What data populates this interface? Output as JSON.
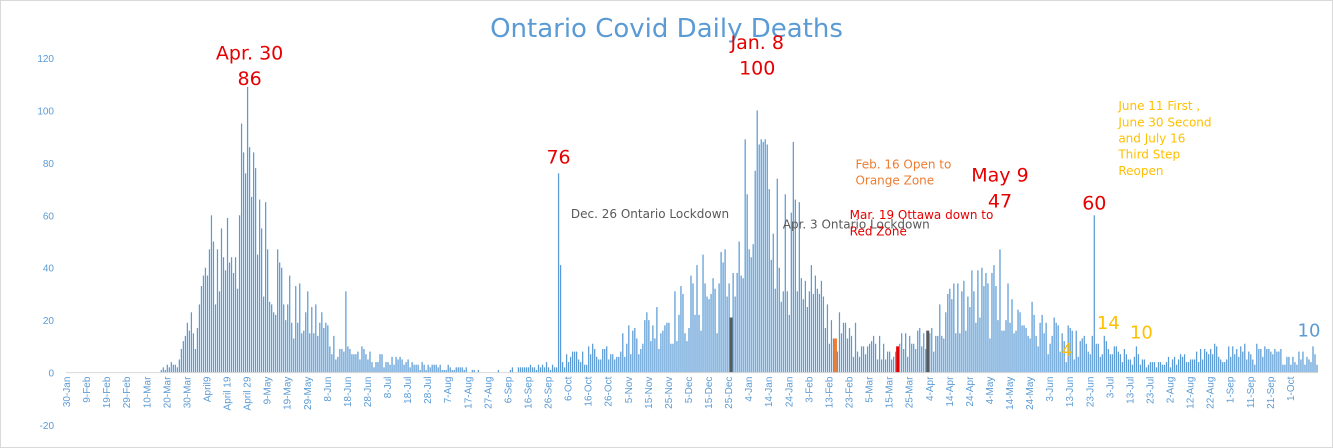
{
  "colors": {
    "bar": "#5b9bd5",
    "title": "#5b9bd5",
    "red": "#e60000",
    "orange": "#ed7d31",
    "gray": "#595959",
    "gold": "#ffc000",
    "blue": "#5b9bd5",
    "axis": "#d9d9d9"
  },
  "chart_data": {
    "type": "bar",
    "title": "Ontario Covid Daily Deaths",
    "xlabel": "",
    "ylabel": "",
    "ylim": [
      -20,
      120
    ],
    "yticks": [
      -20,
      0,
      20,
      40,
      60,
      80,
      100,
      120
    ],
    "grid": false,
    "legend": "none",
    "x_start": "2020-01-30",
    "num_days": 624,
    "xtick_labels": [
      "30-Jan",
      "9-Feb",
      "19-Feb",
      "29-Feb",
      "10-Mar",
      "20-Mar",
      "30-Mar",
      "April9",
      "April 19",
      "April 29",
      "9-May",
      "19-May",
      "29-May",
      "8-Jun",
      "18-Jun",
      "28-Jun",
      "8-Jul",
      "18-Jul",
      "28-Jul",
      "7-Aug",
      "17-Aug",
      "27-Aug",
      "6-Sep",
      "16-Sep",
      "26-Sep",
      "6-Oct",
      "16-Oct",
      "26-Oct",
      "5-Nov",
      "15-Nov",
      "25-Nov",
      "5-Dec",
      "15-Dec",
      "25-Dec",
      "4-Jan",
      "14-Jan",
      "24-Jan",
      "3-Feb",
      "13-Feb",
      "23-Feb",
      "5-Mar",
      "15-Mar",
      "25-Mar",
      "4-Apr",
      "14-Apr",
      "24-Apr",
      "4-May",
      "14-May",
      "24-May",
      "3-Jun",
      "13-Jun",
      "23-Jun",
      "3-Jul",
      "13-Jul",
      "23-Jul",
      "2-Aug",
      "12-Aug",
      "22-Aug",
      "1-Sep",
      "11-Sep",
      "21-Sep",
      "1-Oct"
    ],
    "keypoints": [
      [
        "2020-01-30",
        0
      ],
      [
        "2020-03-11",
        0
      ],
      [
        "2020-03-20",
        2
      ],
      [
        "2020-03-25",
        4
      ],
      [
        "2020-03-30",
        12
      ],
      [
        "2020-04-05",
        25
      ],
      [
        "2020-04-10",
        40
      ],
      [
        "2020-04-15",
        45
      ],
      [
        "2020-04-20",
        50
      ],
      [
        "2020-04-25",
        57
      ],
      [
        "2020-04-30",
        86
      ],
      [
        "2020-05-03",
        80
      ],
      [
        "2020-05-08",
        58
      ],
      [
        "2020-05-12",
        40
      ],
      [
        "2020-05-20",
        25
      ],
      [
        "2020-05-30",
        20
      ],
      [
        "2020-06-05",
        18
      ],
      [
        "2020-06-12",
        10
      ],
      [
        "2020-06-20",
        8
      ],
      [
        "2020-06-30",
        5
      ],
      [
        "2020-07-10",
        4
      ],
      [
        "2020-07-20",
        3
      ],
      [
        "2020-08-01",
        2
      ],
      [
        "2020-09-01",
        1
      ],
      [
        "2020-09-20",
        2
      ],
      [
        "2020-09-30",
        3
      ],
      [
        "2020-10-10",
        6
      ],
      [
        "2020-10-20",
        8
      ],
      [
        "2020-11-01",
        10
      ],
      [
        "2020-11-10",
        15
      ],
      [
        "2020-11-20",
        20
      ],
      [
        "2020-12-01",
        22
      ],
      [
        "2020-12-10",
        28
      ],
      [
        "2020-12-20",
        32
      ],
      [
        "2020-12-31",
        38
      ],
      [
        "2021-01-05",
        50
      ],
      [
        "2021-01-08",
        60
      ],
      [
        "2021-01-12",
        58
      ],
      [
        "2021-01-20",
        52
      ],
      [
        "2021-01-28",
        45
      ],
      [
        "2021-02-03",
        35
      ],
      [
        "2021-02-08",
        25
      ],
      [
        "2021-02-14",
        18
      ],
      [
        "2021-02-20",
        14
      ],
      [
        "2021-03-01",
        12
      ],
      [
        "2021-03-10",
        10
      ],
      [
        "2021-03-20",
        10
      ],
      [
        "2021-03-30",
        12
      ],
      [
        "2021-04-08",
        18
      ],
      [
        "2021-04-15",
        24
      ],
      [
        "2021-04-22",
        27
      ],
      [
        "2021-04-30",
        28
      ],
      [
        "2021-05-10",
        25
      ],
      [
        "2021-05-20",
        20
      ],
      [
        "2021-06-01",
        15
      ],
      [
        "2021-06-10",
        12
      ],
      [
        "2021-06-20",
        10
      ],
      [
        "2021-06-30",
        8
      ],
      [
        "2021-07-10",
        6
      ],
      [
        "2021-07-20",
        4
      ],
      [
        "2021-08-01",
        4
      ],
      [
        "2021-08-15",
        6
      ],
      [
        "2021-09-01",
        8
      ],
      [
        "2021-09-15",
        7
      ],
      [
        "2021-10-01",
        6
      ],
      [
        "2021-10-13",
        6
      ]
    ],
    "spikes": [
      [
        "2020-04-30",
        86
      ],
      [
        "2020-05-02",
        84
      ],
      [
        "2020-04-25",
        60
      ],
      [
        "2020-05-05",
        66
      ],
      [
        "2020-06-17",
        31
      ],
      [
        "2020-10-01",
        76
      ],
      [
        "2020-10-02",
        41
      ],
      [
        "2020-12-12",
        45
      ],
      [
        "2020-12-29",
        38
      ],
      [
        "2021-01-08",
        100
      ],
      [
        "2021-01-02",
        89
      ],
      [
        "2021-01-12",
        89
      ],
      [
        "2021-01-13",
        87
      ],
      [
        "2021-01-26",
        88
      ],
      [
        "2021-02-16",
        13
      ],
      [
        "2021-03-19",
        10
      ],
      [
        "2021-04-03",
        16
      ],
      [
        "2021-05-09",
        47
      ],
      [
        "2021-06-11",
        4
      ],
      [
        "2021-06-25",
        60
      ],
      [
        "2021-06-30",
        14
      ],
      [
        "2021-07-16",
        10
      ],
      [
        "2021-10-12",
        10
      ]
    ],
    "highlights": [
      {
        "date": "2020-12-26",
        "color": "#595959"
      },
      {
        "date": "2021-02-16",
        "color": "#ed7d31"
      },
      {
        "date": "2021-03-19",
        "color": "#e60000"
      },
      {
        "date": "2021-04-03",
        "color": "#595959"
      }
    ],
    "annotations": [
      {
        "lines": [
          "Apr. 30",
          "86"
        ],
        "date": "2020-04-30",
        "value": 86,
        "color": "#e60000",
        "size": 19
      },
      {
        "lines": [
          "Jan. 8",
          "100"
        ],
        "date": "2021-01-08",
        "value": 100,
        "color": "#e60000",
        "size": 19
      },
      {
        "lines": [
          "76"
        ],
        "date": "2020-10-01",
        "value": 76,
        "color": "#e60000",
        "size": 19
      },
      {
        "lines": [
          "Dec. 26 Ontario Lockdown"
        ],
        "date": "2020-12-26",
        "value": 38,
        "color": "#595959",
        "size": 12
      },
      {
        "lines": [
          "Feb. 16 Open to",
          "Orange Zone"
        ],
        "date": "2021-02-16",
        "value": 13,
        "color": "#ed7d31",
        "size": 12
      },
      {
        "lines": [
          "Apr. 3 Ontario Lockdown"
        ],
        "date": "2021-04-03",
        "value": 16,
        "color": "#595959",
        "size": 12
      },
      {
        "lines": [
          "Mar. 19 Ottawa down to",
          "Red Zone"
        ],
        "date": "2021-03-19",
        "value": 10,
        "color": "#e60000",
        "size": 12
      },
      {
        "lines": [
          "May 9",
          "47"
        ],
        "date": "2021-05-09",
        "value": 47,
        "color": "#e60000",
        "size": 19
      },
      {
        "lines": [
          "60"
        ],
        "date": "2021-06-25",
        "value": 60,
        "color": "#e60000",
        "size": 19
      },
      {
        "lines": [
          "June 11 First ,",
          "June 30 Second",
          "and July 16",
          "Third Step",
          "Reopen"
        ],
        "date": "2021-06-30",
        "value": 14,
        "color": "#ffc000",
        "size": 12
      },
      {
        "lines": [
          "4"
        ],
        "date": "2021-06-11",
        "value": 4,
        "color": "#ffc000",
        "size": 18
      },
      {
        "lines": [
          "14"
        ],
        "date": "2021-06-30",
        "value": 14,
        "color": "#ffc000",
        "size": 18
      },
      {
        "lines": [
          "10"
        ],
        "date": "2021-07-16",
        "value": 10,
        "color": "#ffc000",
        "size": 18
      },
      {
        "lines": [
          "10"
        ],
        "date": "2021-10-12",
        "value": 10,
        "color": "#5b9bd5",
        "size": 18
      }
    ]
  }
}
